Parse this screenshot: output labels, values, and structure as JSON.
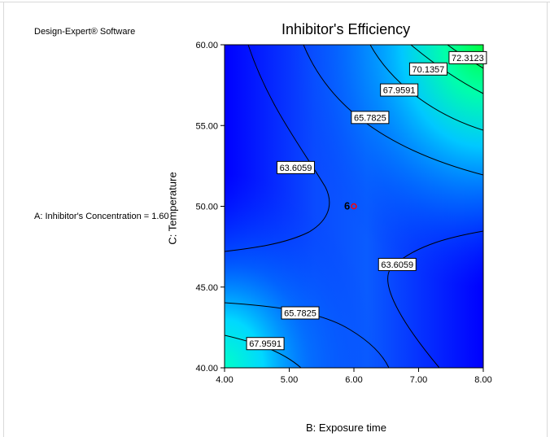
{
  "software_label": "Design-Expert® Software",
  "factor_note": "A: Inhibitor's Concentration = 1.60",
  "chart_data": {
    "type": "contour",
    "title": "Inhibitor's Efficiency",
    "xlabel": "B: Exposure time",
    "ylabel": "C: Temperature",
    "xlim": [
      4.0,
      8.0
    ],
    "ylim": [
      40.0,
      60.0
    ],
    "x_ticks": [
      "4.00",
      "5.00",
      "6.00",
      "7.00",
      "8.00"
    ],
    "y_ticks": [
      "60.00",
      "55.00",
      "50.00",
      "45.00",
      "40.00"
    ],
    "contour_levels": [
      63.6059,
      65.7825,
      67.9591,
      70.1357,
      72.3123
    ],
    "contour_labels": [
      {
        "text": "72.3123",
        "x": 7.76,
        "y": 59.2
      },
      {
        "text": "70.1357",
        "x": 7.15,
        "y": 58.5
      },
      {
        "text": "67.9591",
        "x": 6.7,
        "y": 57.2
      },
      {
        "text": "65.7825",
        "x": 6.25,
        "y": 55.5
      },
      {
        "text": "63.6059",
        "x": 5.1,
        "y": 52.4
      },
      {
        "text": "63.6059",
        "x": 6.67,
        "y": 46.4
      },
      {
        "text": "65.7825",
        "x": 5.17,
        "y": 43.4
      },
      {
        "text": "67.9591",
        "x": 4.63,
        "y": 41.5
      }
    ],
    "design_point": {
      "x": 6.0,
      "y": 50.0,
      "label": "6"
    },
    "colors": {
      "low": "#0000ff",
      "mid": "#00ccff",
      "high": "#00ff66"
    }
  }
}
